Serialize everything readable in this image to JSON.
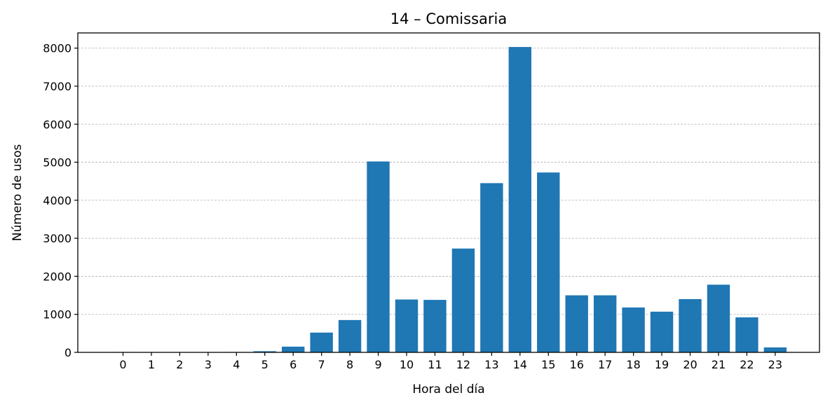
{
  "chart_data": {
    "type": "bar",
    "title": "14 – Comissaria",
    "xlabel": "Hora del día",
    "ylabel": "Número de usos",
    "categories": [
      "0",
      "1",
      "2",
      "3",
      "4",
      "5",
      "6",
      "7",
      "8",
      "9",
      "10",
      "11",
      "12",
      "13",
      "14",
      "15",
      "16",
      "17",
      "18",
      "19",
      "20",
      "21",
      "22",
      "23"
    ],
    "values": [
      10,
      5,
      5,
      5,
      10,
      30,
      150,
      520,
      850,
      5020,
      1390,
      1380,
      2730,
      4450,
      8030,
      4730,
      1500,
      1500,
      1180,
      1070,
      1400,
      1780,
      920,
      130
    ],
    "ylim": [
      0,
      8400
    ],
    "yticks": [
      0,
      1000,
      2000,
      3000,
      4000,
      5000,
      6000,
      7000,
      8000
    ],
    "grid": "y-dashed",
    "bar_color": "#1f77b4"
  }
}
